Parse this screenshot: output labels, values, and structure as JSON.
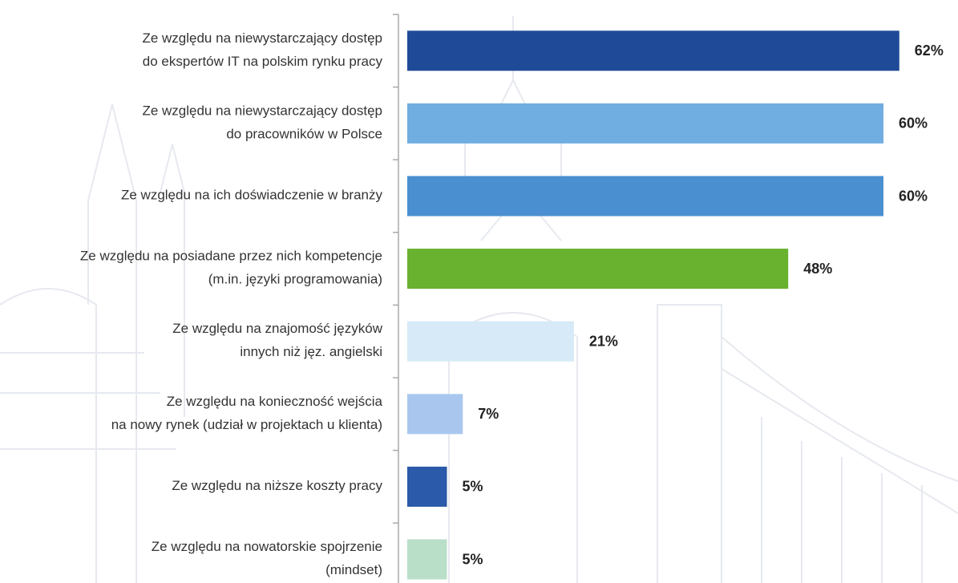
{
  "chart_data": {
    "type": "hbar",
    "categories": [
      "Ze względu na niewystarczający dostęp\ndo ekspertów IT na polskim rynku pracy",
      "Ze względu na niewystarczający dostęp\ndo pracowników w Polsce",
      "Ze względu na ich doświadczenie w branży",
      "Ze względu na posiadane przez nich kompetencje\n(m.in. języki programowania)",
      "Ze względu na znajomość języków\ninnych niż jęz. angielski",
      "Ze względu na konieczność wejścia\nna nowy rynek (udział w projektach u klienta)",
      "Ze względu na niższe koszty pracy",
      "Ze względu na nowatorskie spojrzenie\n(mindset)"
    ],
    "values": [
      62,
      60,
      60,
      48,
      21,
      7,
      5,
      5
    ],
    "value_labels": [
      "62%",
      "60%",
      "60%",
      "48%",
      "21%",
      "7%",
      "5%",
      "5%"
    ],
    "colors": [
      "#1f4a97",
      "#70ade0",
      "#4a8fd0",
      "#68b22f",
      "#d6eaf8",
      "#a9c7ee",
      "#2a5aa9",
      "#b9dfc9"
    ]
  }
}
